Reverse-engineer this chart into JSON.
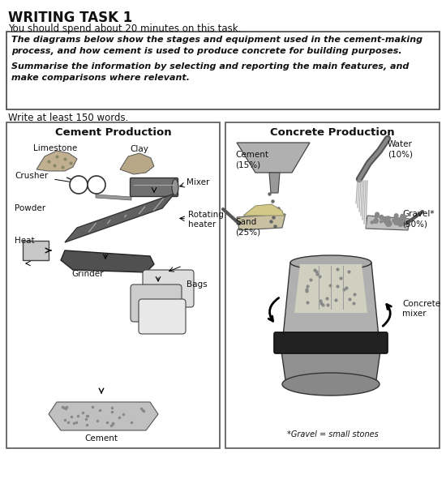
{
  "title": "WRITING TASK 1",
  "subtitle": "You should spend about 20 minutes on this task.",
  "box_text1": "The diagrams below show the stages and equipment used in the cement-making\nprocess, and how cement is used to produce concrete for building purposes.",
  "box_text2": "Summarise the information by selecting and reporting the main features, and\nmake comparisons where relevant.",
  "word_count": "Write at least 150 words.",
  "cement_title": "Cement Production",
  "concrete_title": "Concrete Production",
  "bg_color": "#ffffff",
  "text_color": "#111111",
  "border_color": "#333333"
}
